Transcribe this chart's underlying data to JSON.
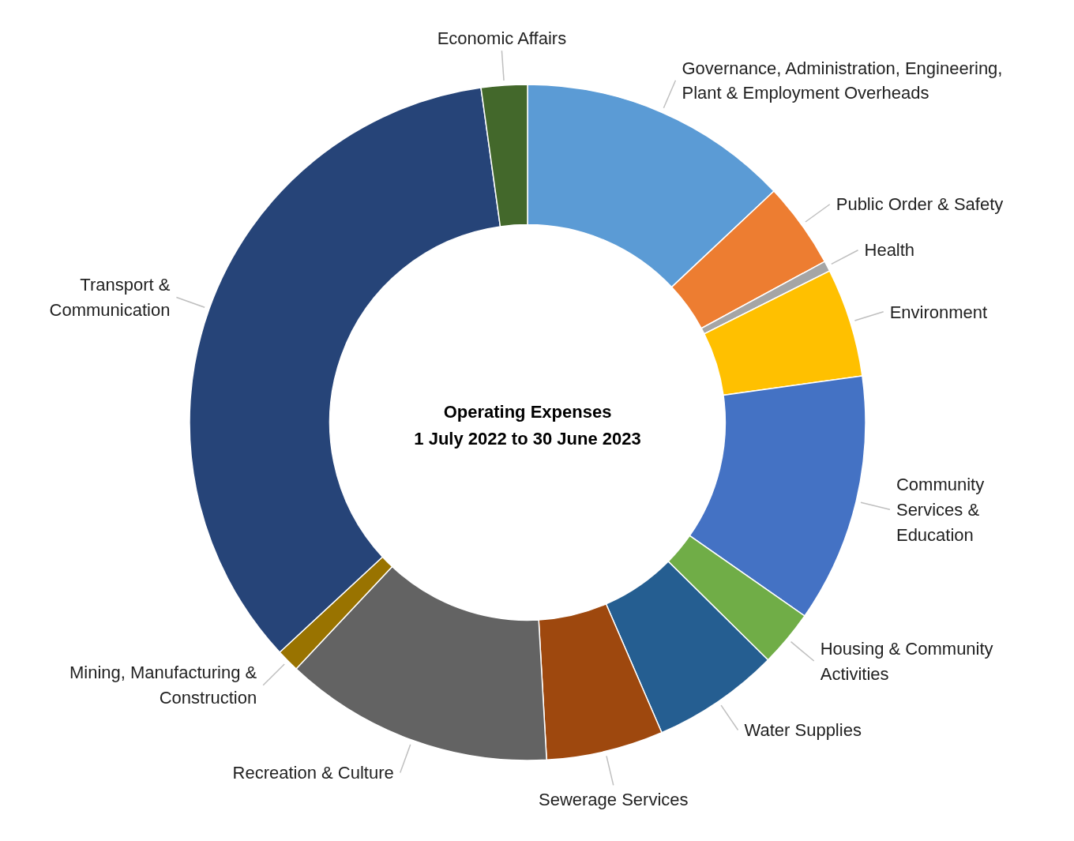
{
  "chart_data": {
    "type": "donut",
    "title": "Operating Expenses",
    "subtitle": "1 July 2022 to 30 June 2023",
    "categories": [
      "Governance, Administration, Engineering, Plant & Employment Overheads",
      "Public Order & Safety",
      "Health",
      "Environment",
      "Community Services & Education",
      "Housing & Community Activities",
      "Water Supplies",
      "Sewerage Services",
      "Recreation & Culture",
      "Mining, Manufacturing & Construction",
      "Transport & Communication",
      "Economic Affairs"
    ],
    "values": [
      13.0,
      4.1,
      0.5,
      5.2,
      11.9,
      2.7,
      6.1,
      5.6,
      12.9,
      1.1,
      34.7,
      2.2
    ],
    "colors": [
      "#5b9bd5",
      "#ed7d31",
      "#a5a5a5",
      "#ffc000",
      "#4472c4",
      "#70ad47",
      "#255e91",
      "#9e480e",
      "#636363",
      "#997300",
      "#264478",
      "#43682b"
    ]
  }
}
